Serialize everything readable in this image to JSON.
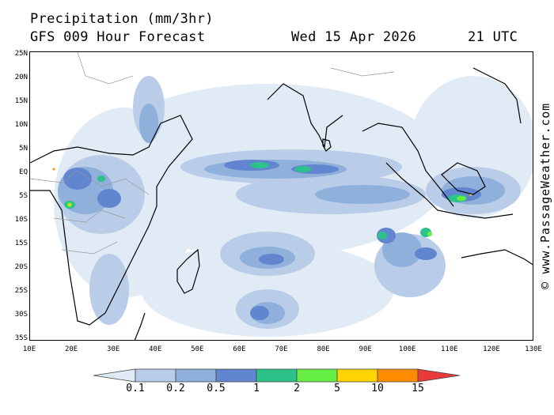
{
  "header": {
    "title": "Precipitation (mm/3hr)",
    "forecast": "GFS 009 Hour Forecast",
    "date": "Wed 15 Apr 2026",
    "time": "21 UTC"
  },
  "credit": "© www.PassageWeather.com",
  "map": {
    "lat_labels": [
      "25N",
      "20N",
      "15N",
      "10N",
      "5N",
      "EQ",
      "5S",
      "10S",
      "15S",
      "20S",
      "25S",
      "30S",
      "35S"
    ],
    "lon_labels": [
      "10E",
      "20E",
      "30E",
      "40E",
      "50E",
      "60E",
      "70E",
      "80E",
      "90E",
      "100E",
      "110E",
      "120E",
      "130E"
    ],
    "lon_range": [
      10,
      130
    ],
    "lat_range": [
      -35.5,
      25.5
    ],
    "colors": {
      "land_outline": "#000000",
      "borders": "#999999",
      "background": "#ffffff"
    }
  },
  "legend": {
    "values": [
      "0.1",
      "0.2",
      "0.5",
      "1",
      "2",
      "5",
      "10",
      "15"
    ],
    "colors": [
      "#e1ebf6",
      "#b9cde8",
      "#8fb0da",
      "#6186cf",
      "#2cc28a",
      "#66ee44",
      "#ffd400",
      "#ff8c00",
      "#e83a3a"
    ]
  }
}
